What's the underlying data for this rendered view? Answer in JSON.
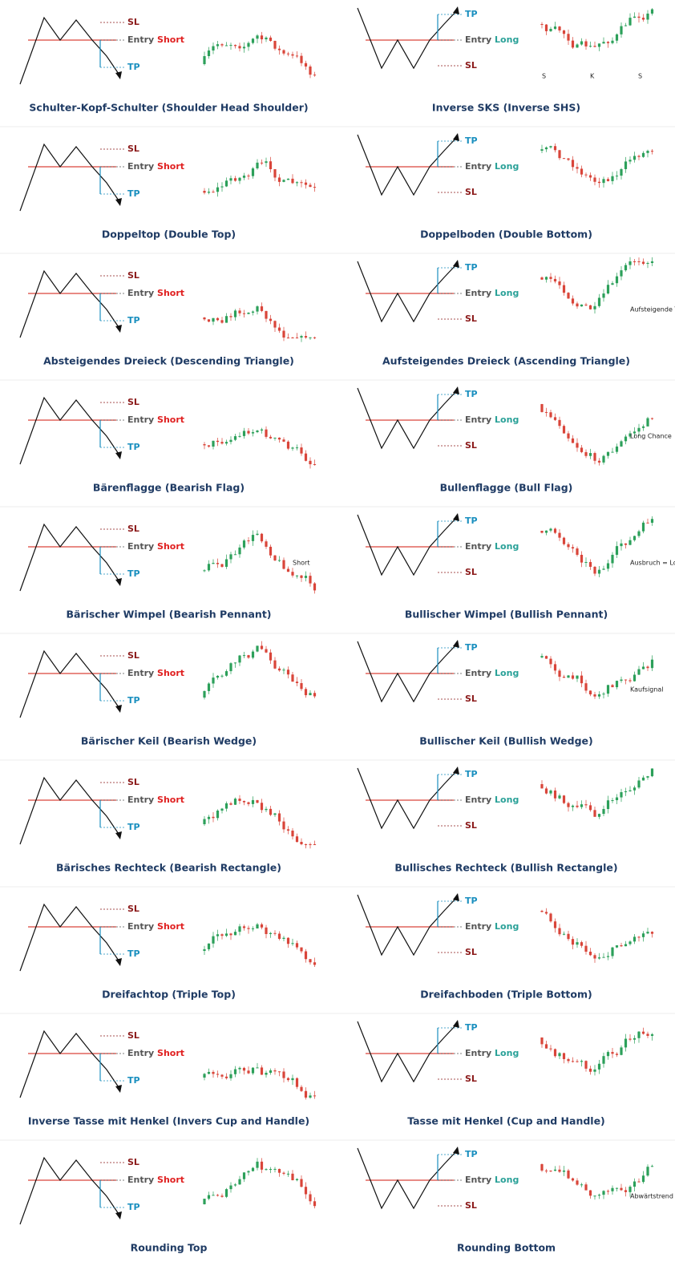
{
  "panels": [
    {
      "title": "Schulter-Kopf-Schulter (Shoulder Head Shoulder)",
      "sl": "SL",
      "entry": "Entry",
      "side": "Short",
      "tp": "TP",
      "notes": []
    },
    {
      "title": "Inverse SKS (Inverse SHS)",
      "sl": "SL",
      "entry": "Entry",
      "side": "Long",
      "tp": "TP",
      "notes": [
        "S",
        "K",
        "S"
      ]
    },
    {
      "title": "Doppeltop (Double Top)",
      "sl": "SL",
      "entry": "Entry",
      "side": "Short",
      "tp": "TP",
      "notes": []
    },
    {
      "title": "Doppelboden (Double Bottom)",
      "sl": "SL",
      "entry": "Entry",
      "side": "Long",
      "tp": "TP",
      "notes": []
    },
    {
      "title": "Absteigendes Dreieck (Descending Triangle)",
      "sl": "SL",
      "entry": "Entry",
      "side": "Short",
      "tp": "TP",
      "notes": []
    },
    {
      "title": "Aufsteigendes Dreieck (Ascending Triangle)",
      "sl": "SL",
      "entry": "Entry",
      "side": "Long",
      "tp": "TP",
      "notes": [
        "Aufsteigende Trendlinie"
      ]
    },
    {
      "title": "Bärenflagge (Bearish Flag)",
      "sl": "SL",
      "entry": "Entry",
      "side": "Short",
      "tp": "TP",
      "notes": []
    },
    {
      "title": "Bullenflagge (Bull Flag)",
      "sl": "SL",
      "entry": "Entry",
      "side": "Long",
      "tp": "TP",
      "notes": [
        "Long Chance"
      ]
    },
    {
      "title": "Bärischer Wimpel (Bearish Pennant)",
      "sl": "SL",
      "entry": "Entry",
      "side": "Short",
      "tp": "TP",
      "notes": [
        "Short"
      ]
    },
    {
      "title": "Bullischer Wimpel (Bullish Pennant)",
      "sl": "SL",
      "entry": "Entry",
      "side": "Long",
      "tp": "TP",
      "notes": [
        "Ausbruch = Long-Signal"
      ]
    },
    {
      "title": "Bärischer Keil (Bearish Wedge)",
      "sl": "SL",
      "entry": "Entry",
      "side": "Short",
      "tp": "TP",
      "notes": []
    },
    {
      "title": "Bullischer Keil (Bullish Wedge)",
      "sl": "SL",
      "entry": "Entry",
      "side": "Long",
      "tp": "TP",
      "notes": [
        "Kaufsignal"
      ]
    },
    {
      "title": "Bärisches Rechteck (Bearish Rectangle)",
      "sl": "SL",
      "entry": "Entry",
      "side": "Short",
      "tp": "TP",
      "notes": []
    },
    {
      "title": "Bullisches Rechteck (Bullish Rectangle)",
      "sl": "SL",
      "entry": "Entry",
      "side": "Long",
      "tp": "TP",
      "notes": []
    },
    {
      "title": "Dreifachtop (Triple Top)",
      "sl": "SL",
      "entry": "Entry",
      "side": "Short",
      "tp": "TP",
      "notes": []
    },
    {
      "title": "Dreifachboden (Triple Bottom)",
      "sl": "SL",
      "entry": "Entry",
      "side": "Long",
      "tp": "TP",
      "notes": []
    },
    {
      "title": "Inverse Tasse mit Henkel (Invers Cup and Handle)",
      "sl": "SL",
      "entry": "Entry",
      "side": "Short",
      "tp": "TP",
      "notes": []
    },
    {
      "title": "Tasse mit Henkel (Cup and Handle)",
      "sl": "SL",
      "entry": "Entry",
      "side": "Long",
      "tp": "TP",
      "notes": []
    },
    {
      "title": "Rounding Top",
      "sl": "SL",
      "entry": "Entry",
      "side": "Short",
      "tp": "TP",
      "notes": []
    },
    {
      "title": "Rounding Bottom",
      "sl": "SL",
      "entry": "Entry",
      "side": "Long",
      "tp": "TP",
      "notes": [
        "Abwärtstrend"
      ]
    }
  ]
}
